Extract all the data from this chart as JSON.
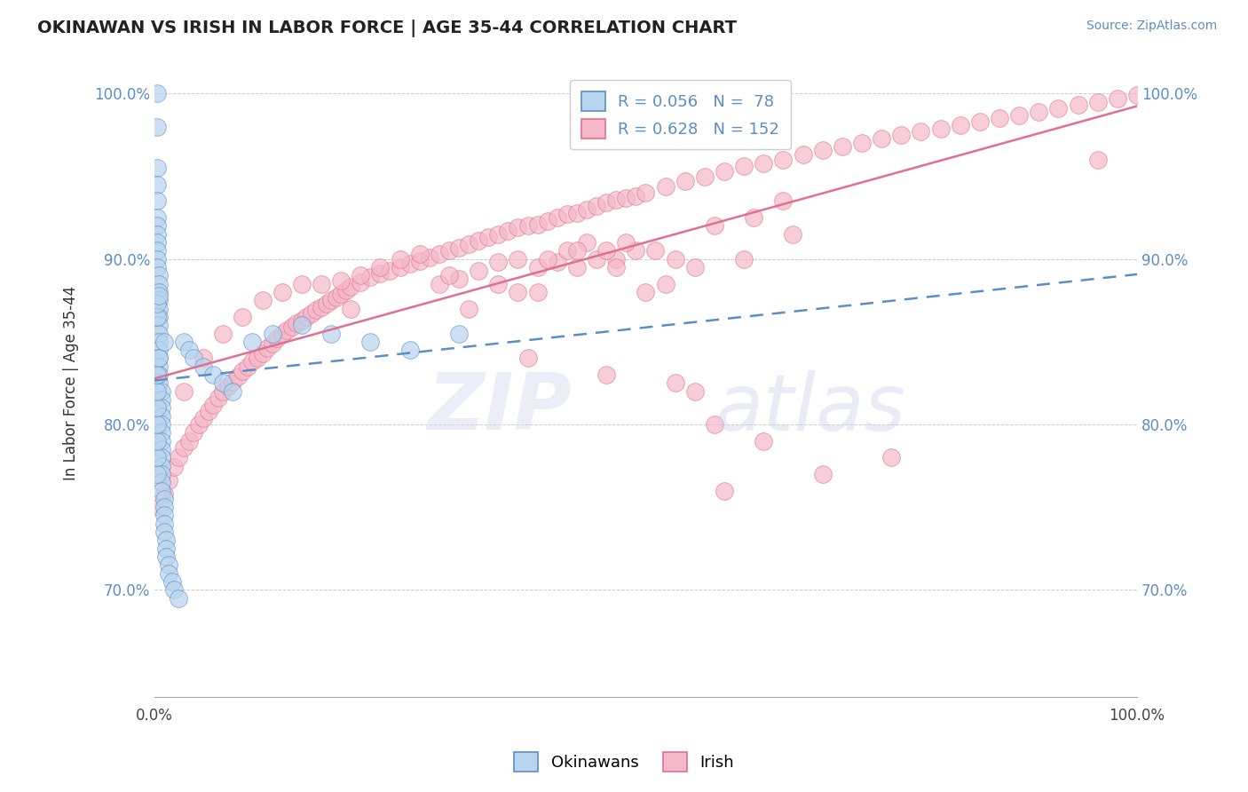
{
  "title": "OKINAWAN VS IRISH IN LABOR FORCE | AGE 35-44 CORRELATION CHART",
  "source_text": "Source: ZipAtlas.com",
  "ylabel": "In Labor Force | Age 35-44",
  "xlim": [
    0.0,
    1.0
  ],
  "ylim": [
    0.635,
    1.015
  ],
  "ytick_positions": [
    0.7,
    0.8,
    0.9,
    1.0
  ],
  "ytick_labels": [
    "70.0%",
    "80.0%",
    "90.0%",
    "100.0%"
  ],
  "blue_fill": "#b8d4ee",
  "blue_edge": "#5b8ec4",
  "blue_line": "#5b8ec4",
  "pink_fill": "#f4b8c8",
  "pink_edge": "#e07090",
  "pink_line": "#e07090",
  "okinawan_x": [
    0.003,
    0.003,
    0.003,
    0.003,
    0.003,
    0.003,
    0.003,
    0.003,
    0.003,
    0.003,
    0.005,
    0.005,
    0.005,
    0.005,
    0.005,
    0.005,
    0.005,
    0.005,
    0.005,
    0.005,
    0.005,
    0.005,
    0.005,
    0.005,
    0.007,
    0.007,
    0.007,
    0.007,
    0.007,
    0.007,
    0.007,
    0.007,
    0.007,
    0.007,
    0.007,
    0.007,
    0.007,
    0.01,
    0.01,
    0.01,
    0.01,
    0.01,
    0.012,
    0.012,
    0.012,
    0.015,
    0.015,
    0.018,
    0.02,
    0.025,
    0.03,
    0.035,
    0.04,
    0.05,
    0.06,
    0.07,
    0.08,
    0.1,
    0.12,
    0.15,
    0.18,
    0.22,
    0.26,
    0.31,
    0.003,
    0.003,
    0.003,
    0.003,
    0.003,
    0.003,
    0.003,
    0.005,
    0.003,
    0.003,
    0.005,
    0.003,
    0.01,
    0.003
  ],
  "okinawan_y": [
    0.955,
    0.945,
    0.935,
    0.925,
    0.92,
    0.915,
    0.91,
    0.905,
    0.9,
    0.895,
    0.89,
    0.885,
    0.88,
    0.875,
    0.87,
    0.865,
    0.86,
    0.855,
    0.85,
    0.845,
    0.84,
    0.835,
    0.83,
    0.825,
    0.82,
    0.815,
    0.81,
    0.805,
    0.8,
    0.795,
    0.79,
    0.785,
    0.78,
    0.775,
    0.77,
    0.765,
    0.76,
    0.755,
    0.75,
    0.745,
    0.74,
    0.735,
    0.73,
    0.725,
    0.72,
    0.715,
    0.71,
    0.705,
    0.7,
    0.695,
    0.85,
    0.845,
    0.84,
    0.835,
    0.83,
    0.825,
    0.82,
    0.85,
    0.855,
    0.86,
    0.855,
    0.85,
    0.845,
    0.855,
    0.77,
    0.78,
    0.79,
    0.8,
    0.81,
    0.82,
    0.83,
    0.84,
    0.865,
    0.873,
    0.878,
    0.98,
    0.85,
    1.0
  ],
  "irish_x": [
    0.005,
    0.01,
    0.015,
    0.02,
    0.025,
    0.03,
    0.035,
    0.04,
    0.045,
    0.05,
    0.055,
    0.06,
    0.065,
    0.07,
    0.075,
    0.08,
    0.085,
    0.09,
    0.095,
    0.1,
    0.105,
    0.11,
    0.115,
    0.12,
    0.125,
    0.13,
    0.135,
    0.14,
    0.145,
    0.15,
    0.155,
    0.16,
    0.165,
    0.17,
    0.175,
    0.18,
    0.185,
    0.19,
    0.195,
    0.2,
    0.21,
    0.22,
    0.23,
    0.24,
    0.25,
    0.26,
    0.27,
    0.28,
    0.29,
    0.3,
    0.31,
    0.32,
    0.33,
    0.34,
    0.35,
    0.36,
    0.37,
    0.38,
    0.39,
    0.4,
    0.41,
    0.42,
    0.43,
    0.44,
    0.45,
    0.46,
    0.47,
    0.48,
    0.49,
    0.5,
    0.52,
    0.54,
    0.56,
    0.58,
    0.6,
    0.62,
    0.64,
    0.66,
    0.68,
    0.7,
    0.72,
    0.74,
    0.76,
    0.78,
    0.8,
    0.82,
    0.84,
    0.86,
    0.88,
    0.9,
    0.92,
    0.94,
    0.96,
    0.98,
    1.0,
    0.03,
    0.05,
    0.07,
    0.09,
    0.11,
    0.13,
    0.15,
    0.17,
    0.19,
    0.21,
    0.23,
    0.25,
    0.27,
    0.29,
    0.31,
    0.33,
    0.35,
    0.37,
    0.39,
    0.41,
    0.43,
    0.45,
    0.47,
    0.49,
    0.51,
    0.55,
    0.4,
    0.42,
    0.44,
    0.46,
    0.48,
    0.37,
    0.39,
    0.53,
    0.57,
    0.61,
    0.64,
    0.2,
    0.3,
    0.35,
    0.43,
    0.47,
    0.52,
    0.6,
    0.65,
    0.5,
    0.55,
    0.46,
    0.53,
    0.57,
    0.62,
    0.68,
    0.75,
    0.96,
    0.32,
    0.38,
    0.58
  ],
  "irish_y": [
    0.75,
    0.758,
    0.766,
    0.774,
    0.78,
    0.786,
    0.79,
    0.795,
    0.8,
    0.804,
    0.808,
    0.812,
    0.816,
    0.82,
    0.823,
    0.826,
    0.829,
    0.832,
    0.835,
    0.838,
    0.84,
    0.843,
    0.846,
    0.849,
    0.852,
    0.855,
    0.857,
    0.859,
    0.861,
    0.863,
    0.865,
    0.867,
    0.869,
    0.871,
    0.873,
    0.875,
    0.877,
    0.879,
    0.881,
    0.883,
    0.886,
    0.889,
    0.891,
    0.893,
    0.895,
    0.897,
    0.899,
    0.901,
    0.903,
    0.905,
    0.907,
    0.909,
    0.911,
    0.913,
    0.915,
    0.917,
    0.919,
    0.92,
    0.921,
    0.923,
    0.925,
    0.927,
    0.928,
    0.93,
    0.932,
    0.934,
    0.936,
    0.937,
    0.938,
    0.94,
    0.944,
    0.947,
    0.95,
    0.953,
    0.956,
    0.958,
    0.96,
    0.963,
    0.966,
    0.968,
    0.97,
    0.973,
    0.975,
    0.977,
    0.979,
    0.981,
    0.983,
    0.985,
    0.987,
    0.989,
    0.991,
    0.993,
    0.995,
    0.997,
    0.999,
    0.82,
    0.84,
    0.855,
    0.865,
    0.875,
    0.88,
    0.885,
    0.885,
    0.887,
    0.89,
    0.895,
    0.9,
    0.903,
    0.885,
    0.888,
    0.893,
    0.898,
    0.9,
    0.895,
    0.898,
    0.895,
    0.9,
    0.9,
    0.905,
    0.905,
    0.895,
    0.9,
    0.905,
    0.91,
    0.905,
    0.91,
    0.88,
    0.88,
    0.9,
    0.92,
    0.925,
    0.935,
    0.87,
    0.89,
    0.885,
    0.905,
    0.895,
    0.885,
    0.9,
    0.915,
    0.88,
    0.82,
    0.83,
    0.825,
    0.8,
    0.79,
    0.77,
    0.78,
    0.96,
    0.87,
    0.84,
    0.76
  ]
}
